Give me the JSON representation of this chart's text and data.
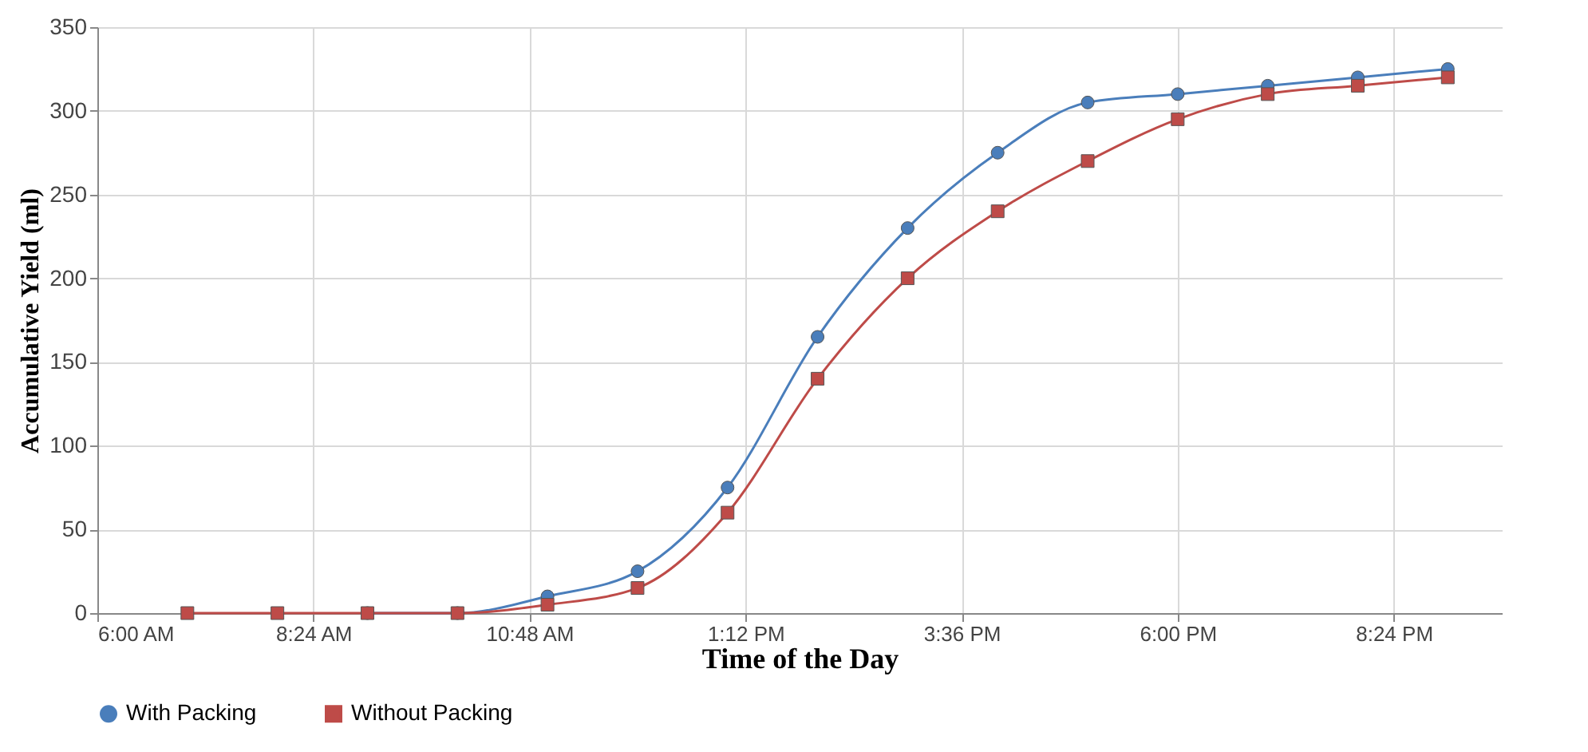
{
  "chart_data": {
    "type": "line",
    "xlabel": "Time of the Day",
    "ylabel": "Accumulative Yield (ml)",
    "x": [
      7,
      8,
      9,
      10,
      11,
      12,
      13,
      14,
      15,
      16,
      17,
      18,
      19,
      20,
      21
    ],
    "series": [
      {
        "name": "With Packing",
        "color": "#4a7ebb",
        "marker": "circle",
        "values": [
          null,
          null,
          0,
          0,
          10,
          25,
          75,
          165,
          230,
          275,
          305,
          310,
          315,
          320,
          325
        ]
      },
      {
        "name": "Without Packing",
        "color": "#be4b48",
        "marker": "square",
        "values": [
          0,
          0,
          0,
          0,
          5,
          15,
          60,
          140,
          200,
          240,
          270,
          295,
          310,
          315,
          320
        ]
      }
    ],
    "xlim": [
      6,
      21.6
    ],
    "xticks": [
      {
        "value": 6,
        "label": "6:00 AM"
      },
      {
        "value": 8.4,
        "label": "8:24 AM"
      },
      {
        "value": 10.8,
        "label": "10:48 AM"
      },
      {
        "value": 13.2,
        "label": "1:12 PM"
      },
      {
        "value": 15.6,
        "label": "3:36 PM"
      },
      {
        "value": 18,
        "label": "6:00 PM"
      },
      {
        "value": 20.4,
        "label": "8:24 PM"
      }
    ],
    "ylim": [
      0,
      350
    ],
    "yticks": [
      0,
      50,
      100,
      150,
      200,
      250,
      300,
      350
    ],
    "grid": true,
    "legend": "bottom",
    "line_style": "solid"
  }
}
